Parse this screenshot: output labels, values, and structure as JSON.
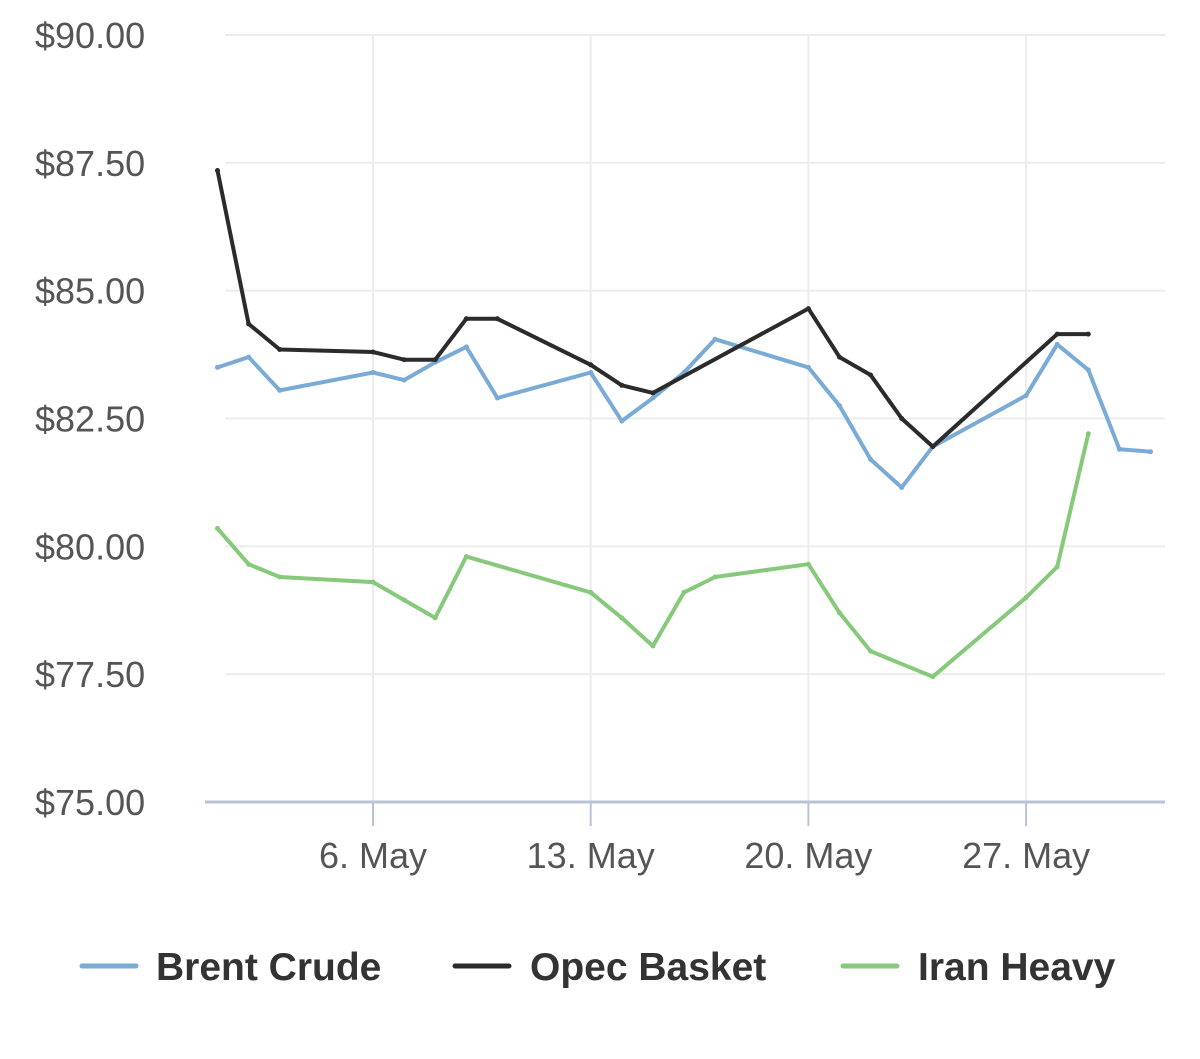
{
  "chart_data": {
    "type": "line",
    "title": "",
    "xlabel": "",
    "ylabel": "",
    "x_axis": {
      "type": "date",
      "start": "2024-05-01",
      "end": "2024-05-31",
      "ticks": [
        {
          "date": "2024-05-06",
          "label": "6. May"
        },
        {
          "date": "2024-05-13",
          "label": "13. May"
        },
        {
          "date": "2024-05-20",
          "label": "20. May"
        },
        {
          "date": "2024-05-27",
          "label": "27. May"
        }
      ]
    },
    "y_axis": {
      "ylim": [
        75,
        90
      ],
      "ticks": [
        {
          "value": 90,
          "label": "$90.00"
        },
        {
          "value": 87.5,
          "label": "$87.50"
        },
        {
          "value": 85,
          "label": "$85.00"
        },
        {
          "value": 82.5,
          "label": "$82.50"
        },
        {
          "value": 80,
          "label": "$80.00"
        },
        {
          "value": 77.5,
          "label": "$77.50"
        },
        {
          "value": 75,
          "label": "$75.00"
        }
      ]
    },
    "grid": true,
    "legend": {
      "placement": "bottom"
    },
    "series": [
      {
        "name": "Brent Crude",
        "color": "#7aaad6",
        "points": [
          [
            "2024-05-01",
            83.5
          ],
          [
            "2024-05-02",
            83.7
          ],
          [
            "2024-05-03",
            83.05
          ],
          [
            "2024-05-06",
            83.4
          ],
          [
            "2024-05-07",
            83.25
          ],
          [
            "2024-05-08",
            83.6
          ],
          [
            "2024-05-09",
            83.9
          ],
          [
            "2024-05-10",
            82.9
          ],
          [
            "2024-05-13",
            83.4
          ],
          [
            "2024-05-14",
            82.45
          ],
          [
            "2024-05-15",
            82.9
          ],
          [
            "2024-05-16",
            83.4
          ],
          [
            "2024-05-17",
            84.05
          ],
          [
            "2024-05-20",
            83.5
          ],
          [
            "2024-05-21",
            82.75
          ],
          [
            "2024-05-22",
            81.7
          ],
          [
            "2024-05-23",
            81.15
          ],
          [
            "2024-05-24",
            81.95
          ],
          [
            "2024-05-27",
            82.95
          ],
          [
            "2024-05-28",
            83.95
          ],
          [
            "2024-05-29",
            83.45
          ],
          [
            "2024-05-30",
            81.9
          ],
          [
            "2024-05-31",
            81.85
          ]
        ]
      },
      {
        "name": "Opec Basket",
        "color": "#2b2b2b",
        "points": [
          [
            "2024-05-01",
            87.35
          ],
          [
            "2024-05-02",
            84.35
          ],
          [
            "2024-05-03",
            83.85
          ],
          [
            "2024-05-06",
            83.8
          ],
          [
            "2024-05-07",
            83.65
          ],
          [
            "2024-05-08",
            83.65
          ],
          [
            "2024-05-09",
            84.45
          ],
          [
            "2024-05-10",
            84.45
          ],
          [
            "2024-05-13",
            83.55
          ],
          [
            "2024-05-14",
            83.15
          ],
          [
            "2024-05-15",
            83.0
          ],
          [
            "2024-05-20",
            84.65
          ],
          [
            "2024-05-21",
            83.7
          ],
          [
            "2024-05-22",
            83.35
          ],
          [
            "2024-05-23",
            82.5
          ],
          [
            "2024-05-24",
            81.95
          ],
          [
            "2024-05-28",
            84.15
          ],
          [
            "2024-05-29",
            84.15
          ]
        ]
      },
      {
        "name": "Iran Heavy",
        "color": "#86c97a",
        "points": [
          [
            "2024-05-01",
            80.35
          ],
          [
            "2024-05-02",
            79.65
          ],
          [
            "2024-05-03",
            79.4
          ],
          [
            "2024-05-06",
            79.3
          ],
          [
            "2024-05-07",
            78.95
          ],
          [
            "2024-05-08",
            78.6
          ],
          [
            "2024-05-09",
            79.8
          ],
          [
            "2024-05-13",
            79.1
          ],
          [
            "2024-05-14",
            78.6
          ],
          [
            "2024-05-15",
            78.05
          ],
          [
            "2024-05-16",
            79.1
          ],
          [
            "2024-05-17",
            79.4
          ],
          [
            "2024-05-20",
            79.65
          ],
          [
            "2024-05-21",
            78.7
          ],
          [
            "2024-05-22",
            77.95
          ],
          [
            "2024-05-24",
            77.45
          ],
          [
            "2024-05-27",
            79.0
          ],
          [
            "2024-05-28",
            79.6
          ],
          [
            "2024-05-29",
            82.2
          ]
        ]
      }
    ]
  }
}
